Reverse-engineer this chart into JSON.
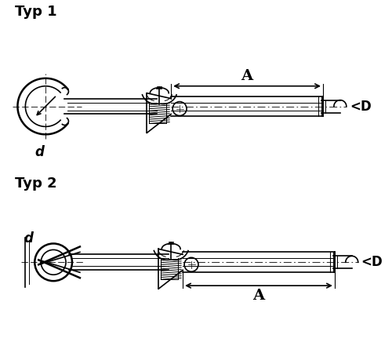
{
  "bg_color": "#ffffff",
  "line_color": "#000000",
  "title1": "Typ 1",
  "title2": "Typ 2",
  "label_d": "d",
  "label_A": "A",
  "label_D": "<D",
  "title_fontsize": 13,
  "label_fontsize": 12,
  "lw_thick": 1.8,
  "lw_med": 1.2,
  "lw_thin": 0.7
}
